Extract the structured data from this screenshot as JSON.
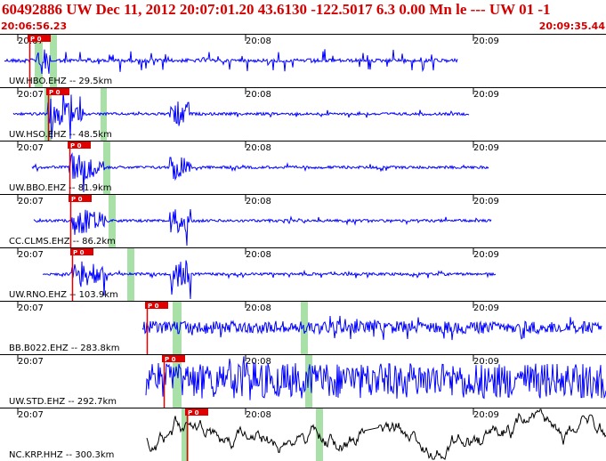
{
  "header": {
    "title": "60492886 UW Dec 11, 2012 20:07:01.20    43.6130 -122.5017  6.3 0.00 Mn le --- UW 01  -1",
    "start_time": "20:06:56.23",
    "end_time": "20:09:35.44"
  },
  "colors": {
    "header_text": "#d40000",
    "trace_short_period": "#0000ff",
    "trace_broadband": "#000000",
    "pick_marker": "#e00000",
    "pick_window": "#a8e0a8"
  },
  "time_ticks": [
    "20:07",
    "20:08",
    "20:09"
  ],
  "pick_label": "P 0",
  "panels": [
    {
      "label": "UW.HBO.EHZ -- 29.5km",
      "color": "blue",
      "kind": "bursty"
    },
    {
      "label": "UW.HSO.EHZ -- 48.5km",
      "color": "blue",
      "kind": "quake"
    },
    {
      "label": "UW.BBO.EHZ -- 81.9km",
      "color": "blue",
      "kind": "quake"
    },
    {
      "label": "CC.CLMS.EHZ -- 86.2km",
      "color": "blue",
      "kind": "quake"
    },
    {
      "label": "UW.RNO.EHZ -- 103.9km",
      "color": "blue",
      "kind": "quake"
    },
    {
      "label": "BB.B022.EHZ -- 283.8km",
      "color": "blue",
      "kind": "noisy"
    },
    {
      "label": "UW.STD.EHZ -- 292.7km",
      "color": "blue",
      "kind": "loud"
    },
    {
      "label": "NC.KRP.HHZ -- 300.3km",
      "color": "black",
      "kind": "longperiod"
    }
  ]
}
